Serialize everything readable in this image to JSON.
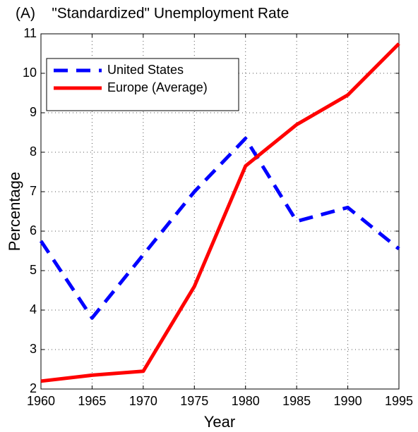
{
  "chart_data": {
    "type": "line",
    "title": "(A)    \"Standardized\" Unemployment Rate",
    "x_label": "Year",
    "y_label": "Percentage",
    "x": [
      1960,
      1965,
      1970,
      1975,
      1980,
      1985,
      1990,
      1995
    ],
    "series": [
      {
        "name": "United States",
        "color": "#0000ff",
        "dash": true,
        "values": [
          5.75,
          3.8,
          5.4,
          7.0,
          8.35,
          6.25,
          6.6,
          5.55
        ]
      },
      {
        "name": "Europe (Average)",
        "color": "#ff0000",
        "dash": false,
        "values": [
          2.2,
          2.35,
          2.45,
          4.6,
          7.65,
          8.7,
          9.45,
          10.75
        ]
      }
    ],
    "xlim": [
      1960,
      1995
    ],
    "xticks": [
      1960,
      1965,
      1970,
      1975,
      1980,
      1985,
      1990,
      1995
    ],
    "ylim": [
      2,
      11
    ],
    "yticks": [
      2,
      3,
      4,
      5,
      6,
      7,
      8,
      9,
      10,
      11
    ],
    "grid": true,
    "legend": "upper left"
  }
}
